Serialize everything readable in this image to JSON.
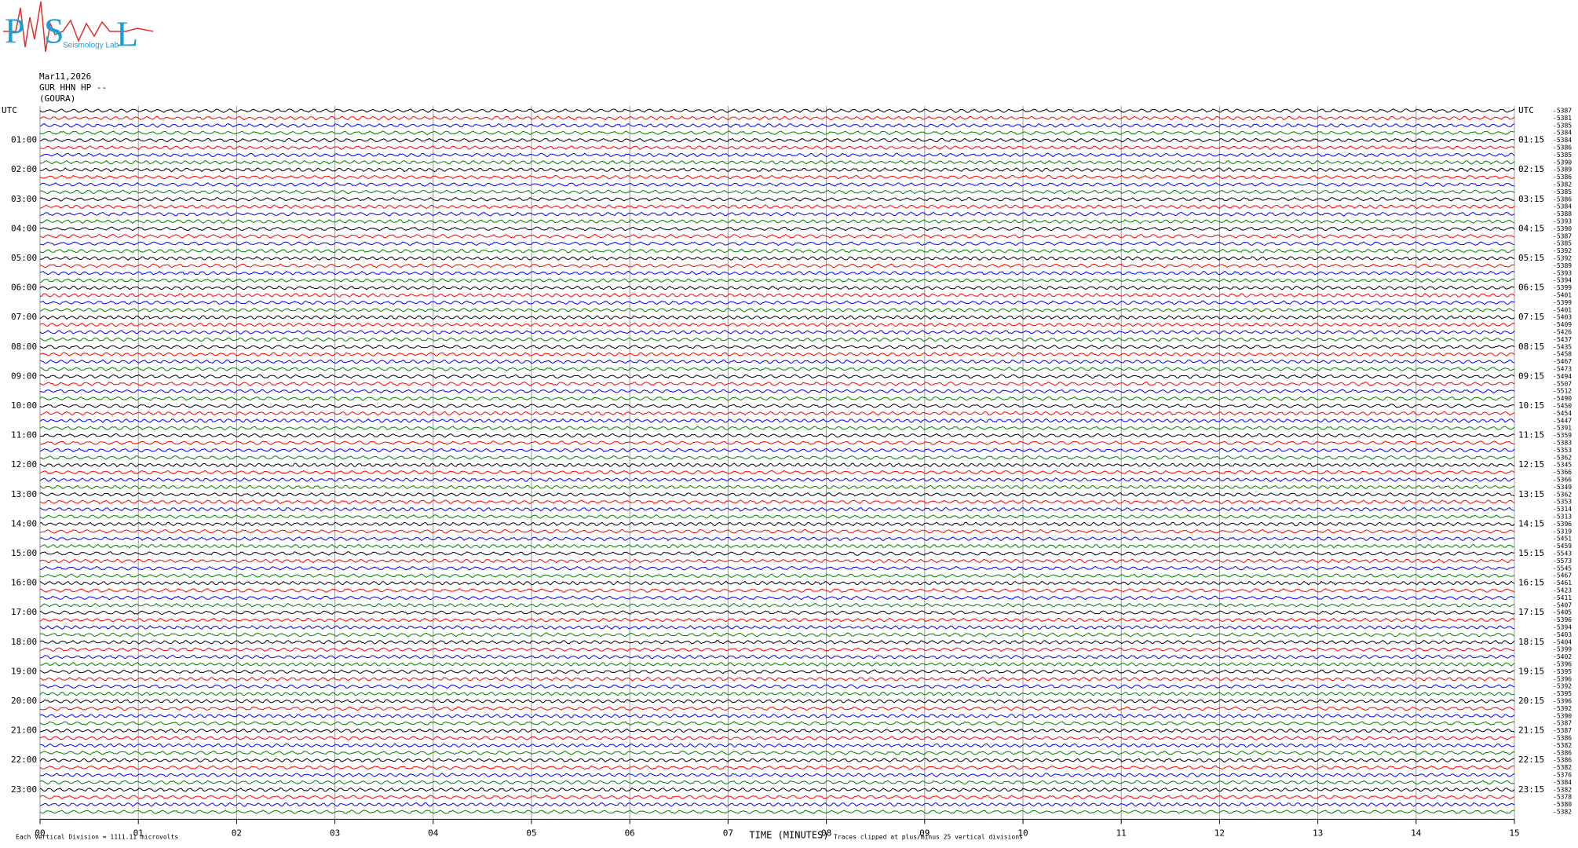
{
  "chart_data": {
    "type": "helicorder",
    "logo": {
      "letters": [
        "P",
        "S",
        "L"
      ],
      "caption": "Seismology Lab"
    },
    "date": "Mar11,2026",
    "station": "GUR HHN HP --",
    "location": "(GOURA)",
    "xlabel": "TIME (MINUTES)",
    "note_left": "Each Vertical Division = 1111.11 microvolts",
    "note_right": "Traces clipped at plus/minus 25 vertical divisions",
    "xlim": [
      0,
      15
    ],
    "xticks": [
      {
        "value": 0,
        "label": "00"
      },
      {
        "value": 1,
        "label": "01"
      },
      {
        "value": 2,
        "label": "02"
      },
      {
        "value": 3,
        "label": "03"
      },
      {
        "value": 4,
        "label": "04"
      },
      {
        "value": 5,
        "label": "05"
      },
      {
        "value": 6,
        "label": "06"
      },
      {
        "value": 7,
        "label": "07"
      },
      {
        "value": 8,
        "label": "08"
      },
      {
        "value": 9,
        "label": "09"
      },
      10,
      11,
      12,
      13,
      14,
      15
    ],
    "grid": true,
    "trace_colors": [
      "#000000",
      "#ff0000",
      "#0000ff",
      "#008000"
    ],
    "left_labels": [
      "UTC",
      "01:00",
      "02:00",
      "03:00",
      "04:00",
      "05:00",
      "06:00",
      "07:00",
      "08:00",
      "09:00",
      "10:00",
      "11:00",
      "12:00",
      "13:00",
      "14:00",
      "15:00",
      "16:00",
      "17:00",
      "18:00",
      "19:00",
      "20:00",
      "21:00",
      "22:00",
      "23:00"
    ],
    "right_labels": [
      "UTC",
      "01:15",
      "02:15",
      "03:15",
      "04:15",
      "05:15",
      "06:15",
      "07:15",
      "08:15",
      "09:15",
      "10:15",
      "11:15",
      "12:15",
      "13:15",
      "14:15",
      "15:15",
      "16:15",
      "17:15",
      "18:15",
      "19:15",
      "20:15",
      "21:15",
      "22:15",
      "23:15"
    ],
    "trace_offsets": [
      "-5387",
      "-5381",
      "-5385",
      "-5384",
      "-5384",
      "-5386",
      "-5385",
      "-5390",
      "-5389",
      "-5386",
      "-5382",
      "-5385",
      "-5386",
      "-5384",
      "-5388",
      "-5393",
      "-5390",
      "-5387",
      "-5385",
      "-5392",
      "-5392",
      "-5389",
      "-5393",
      "-5394",
      "-5399",
      "-5401",
      "-5399",
      "-5401",
      "-5403",
      "-5409",
      "-5426",
      "-5437",
      "-5435",
      "-5458",
      "-5467",
      "-5473",
      "-5494",
      "-5507",
      "-5512",
      "-5490",
      "-5450",
      "-5454",
      "-5447",
      "-5391",
      "-5359",
      "-5383",
      "-5353",
      "-5362",
      "-5345",
      "-5366",
      "-5366",
      "-5349",
      "-5362",
      "-5353",
      "-5314",
      "-5313",
      "-5396",
      "-5319",
      "-5451",
      "-5459",
      "-5543",
      "-5573",
      "-5545",
      "-5467",
      "-5461",
      "-5423",
      "-5411",
      "-5407",
      "-5405",
      "-5396",
      "-5394",
      "-5403",
      "-5404",
      "-5399",
      "-5402",
      "-5396",
      "-5395",
      "-5396",
      "-5392",
      "-5395",
      "-5396",
      "-5392",
      "-5390",
      "-5387",
      "-5387",
      "-5386",
      "-5382",
      "-5386",
      "-5386",
      "-5382",
      "-5376",
      "-5384",
      "-5382",
      "-5378",
      "-5380",
      "-5382"
    ]
  }
}
